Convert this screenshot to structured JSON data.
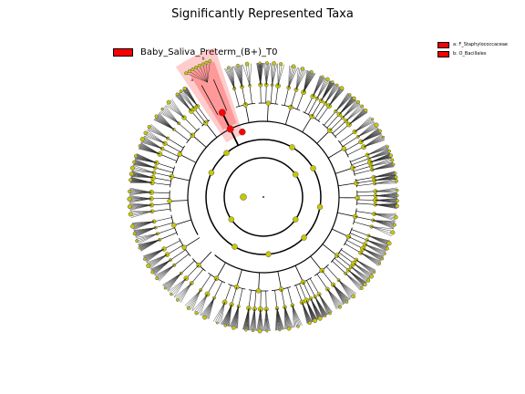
{
  "title": "Significantly Represented Taxa",
  "colors": {
    "node": "#c8c800",
    "highlight": "#ff0000",
    "branch": "#000000"
  },
  "legend": {
    "label": "Baby_Saliva_Preterm_(B+)_T0",
    "color": "#ff0000"
  },
  "clade_key": [
    {
      "letter": "a",
      "text": "a: F_Staphylococcaceae"
    },
    {
      "letter": "b",
      "text": "b: O_Bacillales"
    }
  ],
  "clade_marks": [
    "a",
    "b"
  ]
}
